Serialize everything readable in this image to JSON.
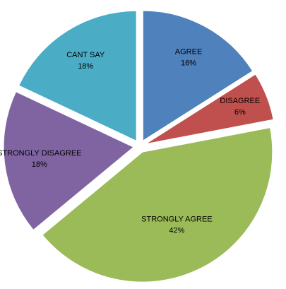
{
  "chart_data": {
    "type": "pie",
    "categories": [
      "AGREE",
      "DISAGREE",
      "STRONGLY AGREE",
      "STRONGLY DISAGREE",
      "CANT SAY"
    ],
    "values": [
      16,
      6,
      42,
      18,
      18
    ],
    "value_labels": [
      "16%",
      "6%",
      "42%",
      "18%",
      "18%"
    ],
    "colors": [
      "#4f81bd",
      "#c0504d",
      "#9bbb59",
      "#8064a2",
      "#4bacc6"
    ],
    "start_angle": 0,
    "direction": "clockwise",
    "exploded": true
  }
}
